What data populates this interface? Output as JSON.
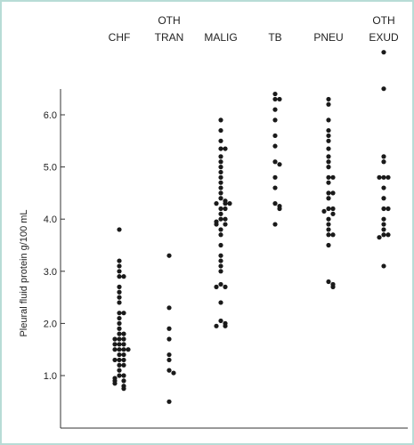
{
  "chart_data": {
    "type": "scatter",
    "title": "",
    "xlabel": "",
    "ylabel": "Pleural fluid protein g/100 mL",
    "ylim": [
      0.0,
      6.0
    ],
    "yticks": [
      "1.0",
      "2.0",
      "3.0",
      "4.0",
      "5.0",
      "6.0"
    ],
    "grid": false,
    "colors": {
      "points": "#1a1a1a",
      "axis": "#333333",
      "frame": "#b8dcd6"
    },
    "categories": [
      {
        "key": "chf",
        "lines": [
          "CHF"
        ],
        "values": [
          3.8,
          3.2,
          3.1,
          3.0,
          2.9,
          2.9,
          2.7,
          2.6,
          2.5,
          2.4,
          2.2,
          2.2,
          2.1,
          2.0,
          1.9,
          1.8,
          1.8,
          1.7,
          1.7,
          1.7,
          1.6,
          1.6,
          1.6,
          1.5,
          1.5,
          1.5,
          1.5,
          1.4,
          1.4,
          1.3,
          1.3,
          1.3,
          1.2,
          1.2,
          1.1,
          1.0,
          1.0,
          0.95,
          0.9,
          0.9,
          0.85,
          0.8,
          0.75
        ]
      },
      {
        "key": "oth-tran",
        "lines": [
          "OTH",
          "TRAN"
        ],
        "values": [
          3.3,
          2.3,
          1.9,
          1.7,
          1.4,
          1.3,
          1.1,
          1.05,
          0.5
        ]
      },
      {
        "key": "malig",
        "lines": [
          "MALIG"
        ],
        "values": [
          5.9,
          5.7,
          5.5,
          5.35,
          5.35,
          5.2,
          5.1,
          5.0,
          4.9,
          4.8,
          4.7,
          4.6,
          4.5,
          4.4,
          4.35,
          4.3,
          4.3,
          4.3,
          4.2,
          4.2,
          4.1,
          4.0,
          4.0,
          3.95,
          3.9,
          3.9,
          3.8,
          3.7,
          3.5,
          3.3,
          3.2,
          3.1,
          3.0,
          2.75,
          2.7,
          2.7,
          2.4,
          2.05,
          2.0,
          1.95,
          1.95
        ]
      },
      {
        "key": "tb",
        "lines": [
          "TB"
        ],
        "values": [
          6.4,
          6.3,
          6.3,
          6.1,
          5.9,
          5.6,
          5.4,
          5.1,
          5.05,
          4.8,
          4.6,
          4.3,
          4.25,
          4.2,
          3.9
        ]
      },
      {
        "key": "pneu",
        "lines": [
          "PNEU"
        ],
        "values": [
          6.3,
          6.2,
          5.9,
          5.7,
          5.6,
          5.5,
          5.35,
          5.2,
          5.1,
          5.0,
          4.8,
          4.8,
          4.7,
          4.5,
          4.5,
          4.4,
          4.2,
          4.2,
          4.15,
          4.1,
          4.0,
          3.9,
          3.8,
          3.7,
          3.7,
          3.5,
          2.8,
          2.75,
          2.7
        ]
      },
      {
        "key": "oth-exud",
        "lines": [
          "OTH",
          "EXUD"
        ],
        "values": [
          7.2,
          6.5,
          5.2,
          5.1,
          4.8,
          4.8,
          4.8,
          4.6,
          4.4,
          4.2,
          4.2,
          4.0,
          3.9,
          3.8,
          3.7,
          3.7,
          3.65,
          3.1
        ]
      }
    ]
  }
}
